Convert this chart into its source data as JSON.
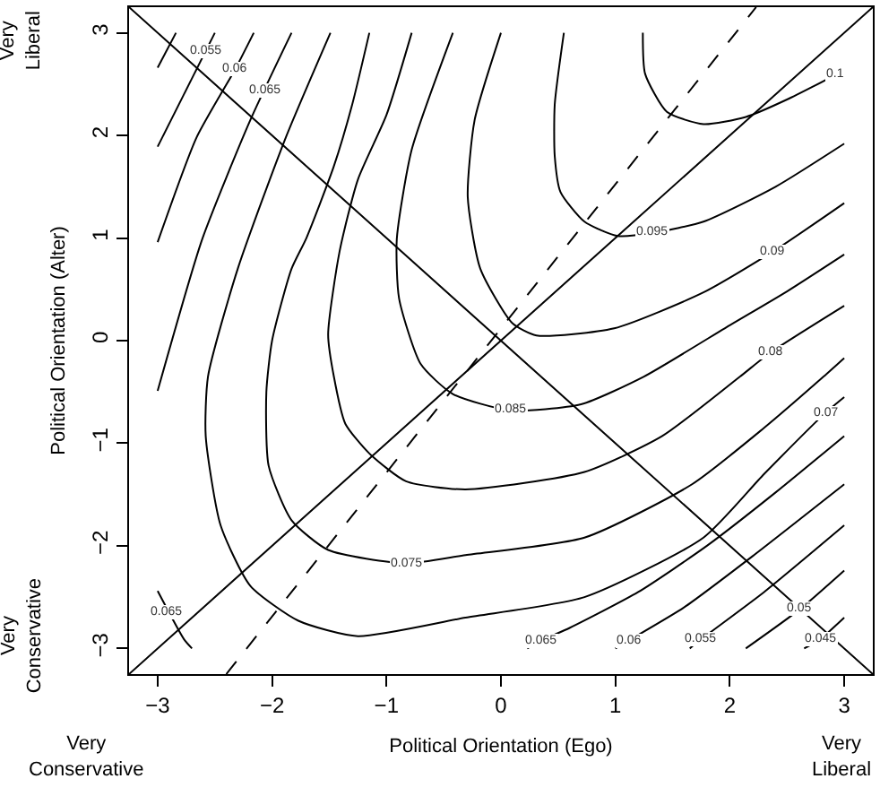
{
  "chart_data": {
    "type": "line",
    "xlabel": "Political Orientation (Ego)",
    "ylabel": "Political Orientation (Alter)",
    "xlim": [
      -3.25,
      3.25
    ],
    "ylim": [
      -3.25,
      3.25
    ],
    "xticks": [
      {
        "value": -3,
        "label": "−3"
      },
      {
        "value": -2,
        "label": "−2"
      },
      {
        "value": -1,
        "label": "−1"
      },
      0,
      1,
      2,
      3
    ],
    "yticks": [
      {
        "value": -3,
        "label": "−3"
      },
      {
        "value": -2,
        "label": "−2"
      },
      {
        "value": -1,
        "label": "−1"
      },
      0,
      1,
      2,
      3
    ],
    "grid": false,
    "marker": "none",
    "series": [
      {
        "color": "#000000",
        "x": [
          -3.25,
          3.25
        ],
        "values": [
          -3.25,
          3.25
        ]
      },
      {
        "color": "#000000",
        "x": [
          -3.25,
          3.25
        ],
        "values": [
          3.25,
          -3.25
        ]
      },
      {
        "color": "#000000",
        "line_style": "dashed",
        "x": [
          -2.4,
          2.23
        ],
        "values": [
          -3.25,
          3.25
        ]
      },
      {
        "color": "#000000",
        "x": [
          -2.84,
          -3.0
        ],
        "values": [
          3.0,
          2.66
        ]
      },
      {
        "color": "#000000",
        "x": [
          -2.5,
          -3.0
        ],
        "values": [
          3.0,
          1.89
        ]
      },
      {
        "color": "#000000",
        "x": [
          -2.16,
          -2.32,
          -2.66,
          -3.0
        ],
        "values": [
          3.0,
          2.65,
          1.98,
          0.96
        ]
      },
      {
        "color": "#000000",
        "x": [
          -1.83,
          -2.19,
          -2.61,
          -3.0
        ],
        "values": [
          3.0,
          2.15,
          0.99,
          -0.49
        ]
      },
      {
        "color": "#000000",
        "x": [
          -1.49,
          -1.88,
          -2.3,
          -2.56,
          -2.58,
          -2.45,
          -2.19,
          -1.77,
          -1.25,
          -0.31,
          0.73,
          1.77,
          2.3,
          2.84,
          3.0
        ],
        "values": [
          3.0,
          1.98,
          0.7,
          -0.35,
          -0.93,
          -1.8,
          -2.39,
          -2.73,
          -2.88,
          -2.7,
          -2.5,
          -1.92,
          -1.3,
          -0.7,
          -0.55
        ]
      },
      {
        "color": "#000000",
        "x": [
          -1.15,
          -1.3,
          -1.46,
          -1.7,
          -1.83,
          -2.0,
          -2.05,
          -2.03,
          -1.83,
          -1.51,
          -0.83,
          -0.31,
          0.73,
          1.67,
          2.3,
          2.82,
          3.0
        ],
        "values": [
          3.0,
          2.3,
          1.7,
          1.0,
          0.7,
          0.0,
          -0.5,
          -1.22,
          -1.75,
          -2.04,
          -2.17,
          -2.09,
          -1.92,
          -1.4,
          -0.85,
          -0.35,
          -0.17
        ]
      },
      {
        "color": "#000000",
        "x": [
          -0.78,
          -1.0,
          -1.25,
          -1.41,
          -1.51,
          -1.46,
          -1.36,
          -1.15,
          -0.83,
          -0.31,
          0.73,
          1.41,
          2.09,
          2.35,
          3.0
        ],
        "values": [
          3.0,
          2.2,
          1.57,
          0.87,
          0.06,
          -0.35,
          -0.81,
          -1.1,
          -1.37,
          -1.45,
          -1.28,
          -0.93,
          -0.35,
          -0.12,
          0.34
        ]
      },
      {
        "color": "#000000",
        "x": [
          -0.42,
          -0.78,
          -0.91,
          -0.89,
          -0.7,
          -0.42,
          0.08,
          0.7,
          1.25,
          2.0,
          2.5,
          3.0
        ],
        "values": [
          3.0,
          1.86,
          0.99,
          0.41,
          -0.23,
          -0.52,
          -0.68,
          -0.62,
          -0.35,
          0.15,
          0.48,
          0.84
        ]
      },
      {
        "color": "#000000",
        "x": [
          0.0,
          -0.23,
          -0.29,
          -0.18,
          0.1,
          0.31,
          0.99,
          1.77,
          2.38,
          3.0
        ],
        "values": [
          3.0,
          2.15,
          1.4,
          0.7,
          0.17,
          0.05,
          0.12,
          0.47,
          0.87,
          1.34
        ]
      },
      {
        "color": "#000000",
        "x": [
          0.55,
          0.47,
          0.47,
          0.52,
          0.73,
          1.02,
          1.33,
          1.77,
          2.4,
          3.0
        ],
        "values": [
          3.0,
          2.3,
          1.8,
          1.45,
          1.16,
          1.02,
          1.05,
          1.16,
          1.5,
          1.92
        ]
      },
      {
        "color": "#000000",
        "x": [
          1.24,
          1.26,
          1.45,
          1.77,
          2.14,
          2.5,
          2.92,
          3.0
        ],
        "values": [
          3.0,
          2.6,
          2.23,
          2.11,
          2.18,
          2.35,
          2.59,
          2.65
        ]
      },
      {
        "color": "#000000",
        "x": [
          0.23,
          0.36,
          0.6,
          1.2,
          1.8,
          2.4,
          3.0
        ],
        "values": [
          -3.0,
          -2.92,
          -2.8,
          -2.45,
          -2.0,
          -1.48,
          -0.93
        ]
      },
      {
        "color": "#000000",
        "x": [
          1.0,
          1.12,
          1.6,
          2.2,
          3.0
        ],
        "values": [
          -3.0,
          -2.92,
          -2.6,
          -2.1,
          -1.4
        ]
      },
      {
        "color": "#000000",
        "x": [
          1.65,
          1.75,
          2.3,
          3.0
        ],
        "values": [
          -3.0,
          -2.91,
          -2.45,
          -1.8
        ]
      },
      {
        "color": "#000000",
        "x": [
          2.14,
          2.61,
          3.0
        ],
        "values": [
          -3.0,
          -2.62,
          -2.24
        ]
      },
      {
        "color": "#000000",
        "x": [
          2.65,
          2.79,
          3.0
        ],
        "values": [
          -3.0,
          -2.91,
          -2.7
        ]
      },
      {
        "color": "#000000",
        "x": [
          -3.0,
          -2.77,
          -2.7
        ],
        "values": [
          -2.44,
          -2.91,
          -3.0
        ]
      }
    ],
    "annotations": [
      "Very\nLiberal",
      "Very\nConservative",
      "Very\nConservative",
      "Very\nLiberal",
      {
        "text": "0.055",
        "x": -2.58,
        "y": 2.82
      },
      {
        "text": "0.06",
        "x": -2.32,
        "y": 2.65
      },
      {
        "text": "0.065",
        "x": -2.06,
        "y": 2.44
      },
      {
        "text": "0.1",
        "x": 2.92,
        "y": 2.59
      },
      {
        "text": "0.095",
        "x": 1.33,
        "y": 1.05
      },
      {
        "text": "0.09",
        "x": 2.38,
        "y": 0.87
      },
      {
        "text": "0.085",
        "x": 0.08,
        "y": -0.68
      },
      {
        "text": "0.08",
        "x": 2.35,
        "y": -0.12
      },
      {
        "text": "0.07",
        "x": 2.84,
        "y": -0.7
      },
      {
        "text": "0.075",
        "x": -0.83,
        "y": -2.17
      },
      {
        "text": "0.065",
        "x": 0.36,
        "y": -2.92
      },
      {
        "text": "0.06",
        "x": 1.12,
        "y": -2.92
      },
      {
        "text": "0.055",
        "x": 1.75,
        "y": -2.91
      },
      {
        "text": "0.05",
        "x": 2.61,
        "y": -2.62
      },
      {
        "text": "0.045",
        "x": 2.79,
        "y": -2.91
      },
      {
        "text": "0.065",
        "x": -2.92,
        "y": -2.65
      }
    ]
  }
}
